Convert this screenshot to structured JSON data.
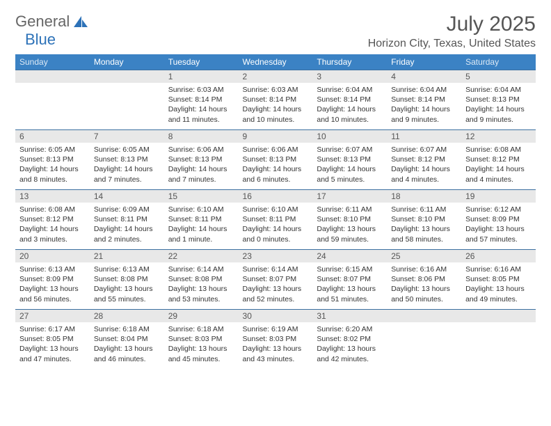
{
  "brand": {
    "part1": "General",
    "part2": "Blue"
  },
  "title": "July 2025",
  "location": "Horizon City, Texas, United States",
  "colors": {
    "header_bg": "#3b82c4",
    "header_text": "#ffffff",
    "row_border": "#3b6fa0",
    "daynum_bg": "#e8e8e8",
    "body_text": "#333333",
    "brand_gray": "#666666",
    "brand_blue": "#2d72b8"
  },
  "weekdays": [
    "Sunday",
    "Monday",
    "Tuesday",
    "Wednesday",
    "Thursday",
    "Friday",
    "Saturday"
  ],
  "weeks": [
    [
      {
        "n": "",
        "sunrise": "",
        "sunset": "",
        "daylight": ""
      },
      {
        "n": "",
        "sunrise": "",
        "sunset": "",
        "daylight": ""
      },
      {
        "n": "1",
        "sunrise": "Sunrise: 6:03 AM",
        "sunset": "Sunset: 8:14 PM",
        "daylight": "Daylight: 14 hours and 11 minutes."
      },
      {
        "n": "2",
        "sunrise": "Sunrise: 6:03 AM",
        "sunset": "Sunset: 8:14 PM",
        "daylight": "Daylight: 14 hours and 10 minutes."
      },
      {
        "n": "3",
        "sunrise": "Sunrise: 6:04 AM",
        "sunset": "Sunset: 8:14 PM",
        "daylight": "Daylight: 14 hours and 10 minutes."
      },
      {
        "n": "4",
        "sunrise": "Sunrise: 6:04 AM",
        "sunset": "Sunset: 8:14 PM",
        "daylight": "Daylight: 14 hours and 9 minutes."
      },
      {
        "n": "5",
        "sunrise": "Sunrise: 6:04 AM",
        "sunset": "Sunset: 8:13 PM",
        "daylight": "Daylight: 14 hours and 9 minutes."
      }
    ],
    [
      {
        "n": "6",
        "sunrise": "Sunrise: 6:05 AM",
        "sunset": "Sunset: 8:13 PM",
        "daylight": "Daylight: 14 hours and 8 minutes."
      },
      {
        "n": "7",
        "sunrise": "Sunrise: 6:05 AM",
        "sunset": "Sunset: 8:13 PM",
        "daylight": "Daylight: 14 hours and 7 minutes."
      },
      {
        "n": "8",
        "sunrise": "Sunrise: 6:06 AM",
        "sunset": "Sunset: 8:13 PM",
        "daylight": "Daylight: 14 hours and 7 minutes."
      },
      {
        "n": "9",
        "sunrise": "Sunrise: 6:06 AM",
        "sunset": "Sunset: 8:13 PM",
        "daylight": "Daylight: 14 hours and 6 minutes."
      },
      {
        "n": "10",
        "sunrise": "Sunrise: 6:07 AM",
        "sunset": "Sunset: 8:13 PM",
        "daylight": "Daylight: 14 hours and 5 minutes."
      },
      {
        "n": "11",
        "sunrise": "Sunrise: 6:07 AM",
        "sunset": "Sunset: 8:12 PM",
        "daylight": "Daylight: 14 hours and 4 minutes."
      },
      {
        "n": "12",
        "sunrise": "Sunrise: 6:08 AM",
        "sunset": "Sunset: 8:12 PM",
        "daylight": "Daylight: 14 hours and 4 minutes."
      }
    ],
    [
      {
        "n": "13",
        "sunrise": "Sunrise: 6:08 AM",
        "sunset": "Sunset: 8:12 PM",
        "daylight": "Daylight: 14 hours and 3 minutes."
      },
      {
        "n": "14",
        "sunrise": "Sunrise: 6:09 AM",
        "sunset": "Sunset: 8:11 PM",
        "daylight": "Daylight: 14 hours and 2 minutes."
      },
      {
        "n": "15",
        "sunrise": "Sunrise: 6:10 AM",
        "sunset": "Sunset: 8:11 PM",
        "daylight": "Daylight: 14 hours and 1 minute."
      },
      {
        "n": "16",
        "sunrise": "Sunrise: 6:10 AM",
        "sunset": "Sunset: 8:11 PM",
        "daylight": "Daylight: 14 hours and 0 minutes."
      },
      {
        "n": "17",
        "sunrise": "Sunrise: 6:11 AM",
        "sunset": "Sunset: 8:10 PM",
        "daylight": "Daylight: 13 hours and 59 minutes."
      },
      {
        "n": "18",
        "sunrise": "Sunrise: 6:11 AM",
        "sunset": "Sunset: 8:10 PM",
        "daylight": "Daylight: 13 hours and 58 minutes."
      },
      {
        "n": "19",
        "sunrise": "Sunrise: 6:12 AM",
        "sunset": "Sunset: 8:09 PM",
        "daylight": "Daylight: 13 hours and 57 minutes."
      }
    ],
    [
      {
        "n": "20",
        "sunrise": "Sunrise: 6:13 AM",
        "sunset": "Sunset: 8:09 PM",
        "daylight": "Daylight: 13 hours and 56 minutes."
      },
      {
        "n": "21",
        "sunrise": "Sunrise: 6:13 AM",
        "sunset": "Sunset: 8:08 PM",
        "daylight": "Daylight: 13 hours and 55 minutes."
      },
      {
        "n": "22",
        "sunrise": "Sunrise: 6:14 AM",
        "sunset": "Sunset: 8:08 PM",
        "daylight": "Daylight: 13 hours and 53 minutes."
      },
      {
        "n": "23",
        "sunrise": "Sunrise: 6:14 AM",
        "sunset": "Sunset: 8:07 PM",
        "daylight": "Daylight: 13 hours and 52 minutes."
      },
      {
        "n": "24",
        "sunrise": "Sunrise: 6:15 AM",
        "sunset": "Sunset: 8:07 PM",
        "daylight": "Daylight: 13 hours and 51 minutes."
      },
      {
        "n": "25",
        "sunrise": "Sunrise: 6:16 AM",
        "sunset": "Sunset: 8:06 PM",
        "daylight": "Daylight: 13 hours and 50 minutes."
      },
      {
        "n": "26",
        "sunrise": "Sunrise: 6:16 AM",
        "sunset": "Sunset: 8:05 PM",
        "daylight": "Daylight: 13 hours and 49 minutes."
      }
    ],
    [
      {
        "n": "27",
        "sunrise": "Sunrise: 6:17 AM",
        "sunset": "Sunset: 8:05 PM",
        "daylight": "Daylight: 13 hours and 47 minutes."
      },
      {
        "n": "28",
        "sunrise": "Sunrise: 6:18 AM",
        "sunset": "Sunset: 8:04 PM",
        "daylight": "Daylight: 13 hours and 46 minutes."
      },
      {
        "n": "29",
        "sunrise": "Sunrise: 6:18 AM",
        "sunset": "Sunset: 8:03 PM",
        "daylight": "Daylight: 13 hours and 45 minutes."
      },
      {
        "n": "30",
        "sunrise": "Sunrise: 6:19 AM",
        "sunset": "Sunset: 8:03 PM",
        "daylight": "Daylight: 13 hours and 43 minutes."
      },
      {
        "n": "31",
        "sunrise": "Sunrise: 6:20 AM",
        "sunset": "Sunset: 8:02 PM",
        "daylight": "Daylight: 13 hours and 42 minutes."
      },
      {
        "n": "",
        "sunrise": "",
        "sunset": "",
        "daylight": ""
      },
      {
        "n": "",
        "sunrise": "",
        "sunset": "",
        "daylight": ""
      }
    ]
  ]
}
